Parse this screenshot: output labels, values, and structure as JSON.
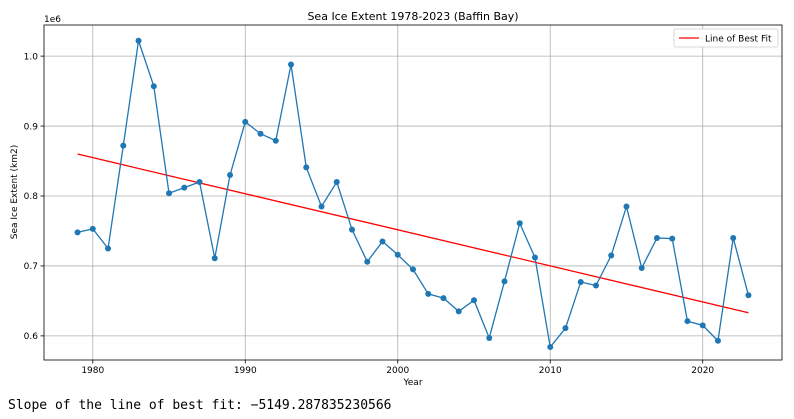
{
  "chart_data": {
    "type": "line",
    "title": "Sea Ice Extent 1978-2023 (Baffin Bay)",
    "xlabel": "Year",
    "ylabel": "Sea Ice Extent (km2)",
    "y_offset_label": "1e6",
    "xlim": [
      1976.8,
      2025.2
    ],
    "ylim": [
      0.5655,
      1.0445
    ],
    "x_ticks": [
      1980,
      1990,
      2000,
      2010,
      2020
    ],
    "y_ticks": [
      0.6,
      0.7,
      0.8,
      0.9,
      1.0
    ],
    "x_tick_labels": [
      "1980",
      "1990",
      "2000",
      "2010",
      "2020"
    ],
    "y_tick_labels": [
      "0.6",
      "0.7",
      "0.8",
      "0.9",
      "1.0"
    ],
    "grid": true,
    "legend_position": "top-right",
    "series": [
      {
        "color": "#1f77b4",
        "x": [
          1979,
          1980,
          1981,
          1982,
          1983,
          1984,
          1985,
          1986,
          1987,
          1988,
          1989,
          1990,
          1991,
          1992,
          1993,
          1994,
          1995,
          1996,
          1997,
          1998,
          1999,
          2000,
          2001,
          2002,
          2003,
          2004,
          2005,
          2006,
          2007,
          2008,
          2009,
          2010,
          2011,
          2012,
          2013,
          2014,
          2015,
          2016,
          2017,
          2018,
          2019,
          2020,
          2021,
          2022,
          2023
        ],
        "values": [
          0.748,
          0.753,
          0.725,
          0.872,
          1.022,
          0.957,
          0.804,
          0.812,
          0.82,
          0.711,
          0.83,
          0.906,
          0.889,
          0.879,
          0.988,
          0.841,
          0.785,
          0.82,
          0.752,
          0.706,
          0.735,
          0.716,
          0.695,
          0.66,
          0.654,
          0.635,
          0.651,
          0.597,
          0.678,
          0.761,
          0.712,
          0.584,
          0.611,
          0.677,
          0.672,
          0.715,
          0.785,
          0.697,
          0.74,
          0.739,
          0.621,
          0.615,
          0.593,
          0.74,
          0.658
        ]
      },
      {
        "name": "Line of Best Fit",
        "color": "#ff0000",
        "x": [
          1979,
          2023
        ],
        "values": [
          0.86,
          0.633
        ]
      }
    ]
  },
  "footer": {
    "slope_text": "Slope of the line of best fit: −5149.287835230566"
  }
}
